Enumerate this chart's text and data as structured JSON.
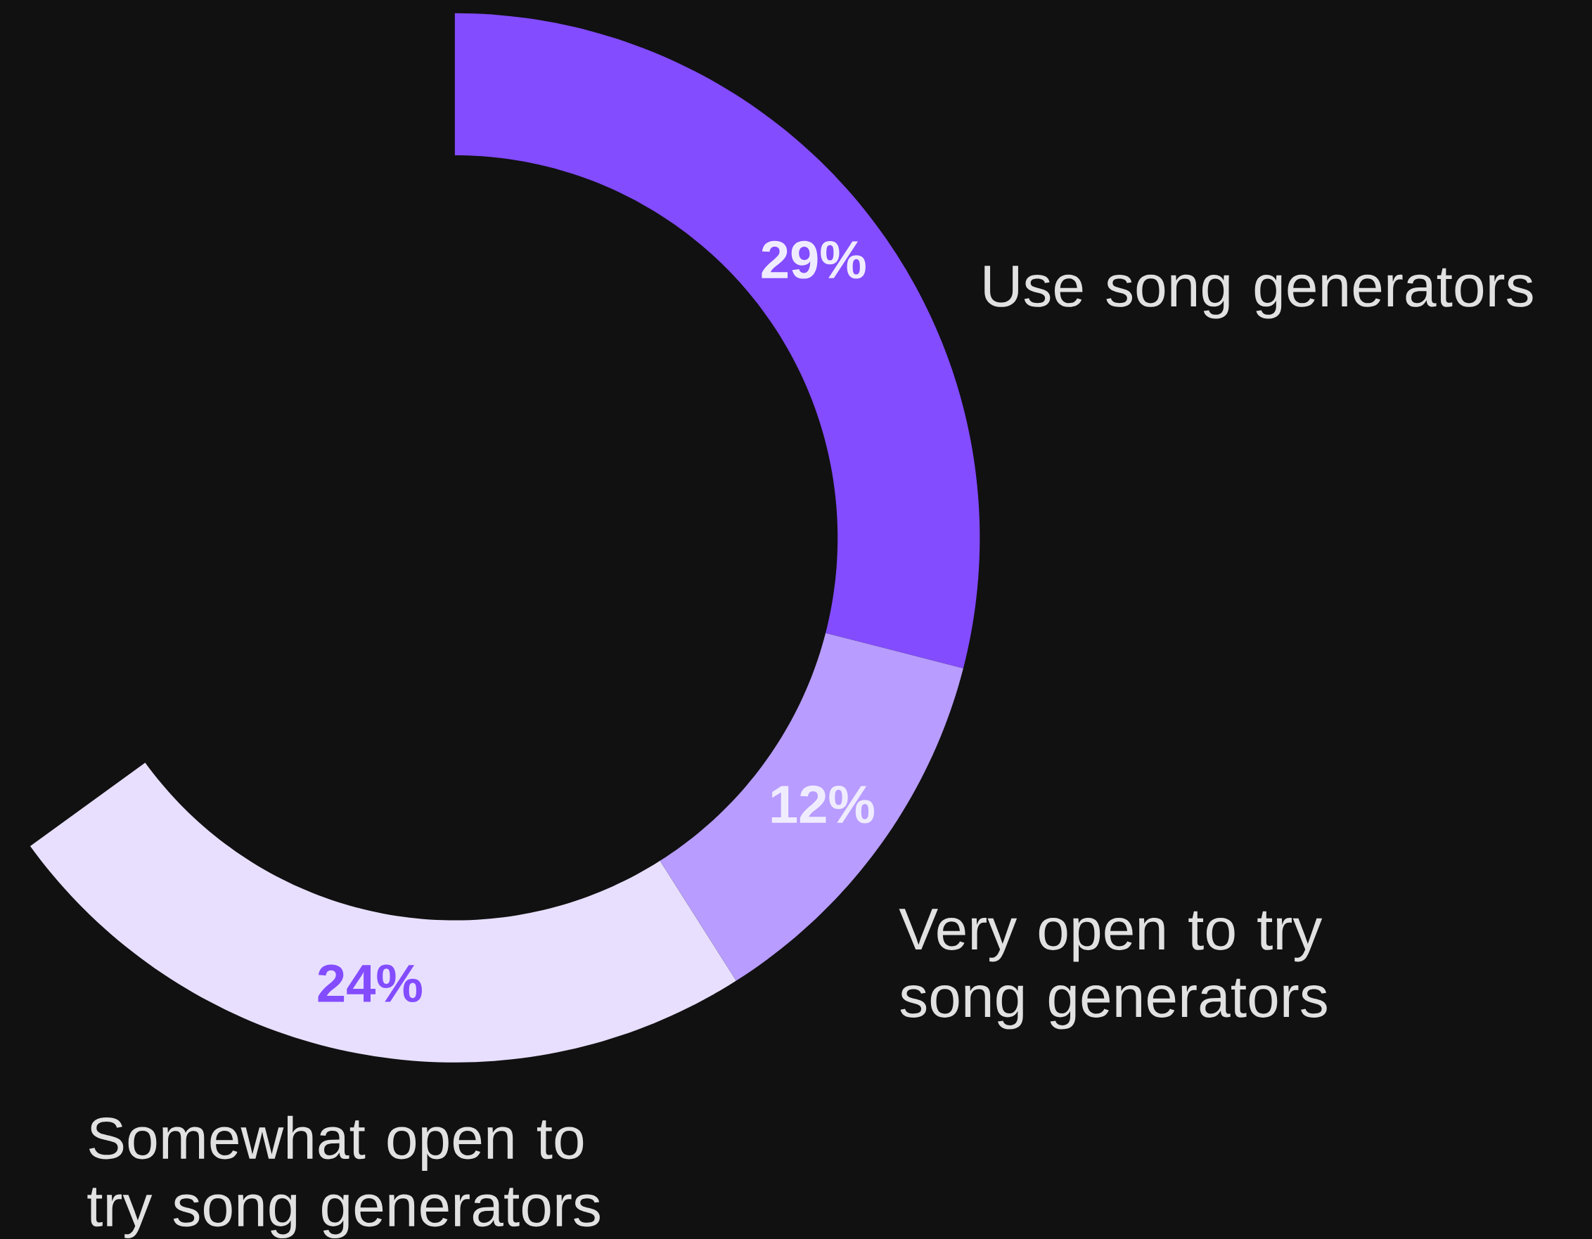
{
  "chart_data": {
    "type": "donut",
    "categories": [
      "Use song generators",
      "Very open to try song generators",
      "Somewhat open to try song generators"
    ],
    "values": [
      29,
      12,
      24
    ],
    "colors": [
      "#834cff",
      "#b89cff",
      "#e8dfff"
    ],
    "value_labels": [
      "29%",
      "12%",
      "24%"
    ]
  }
}
